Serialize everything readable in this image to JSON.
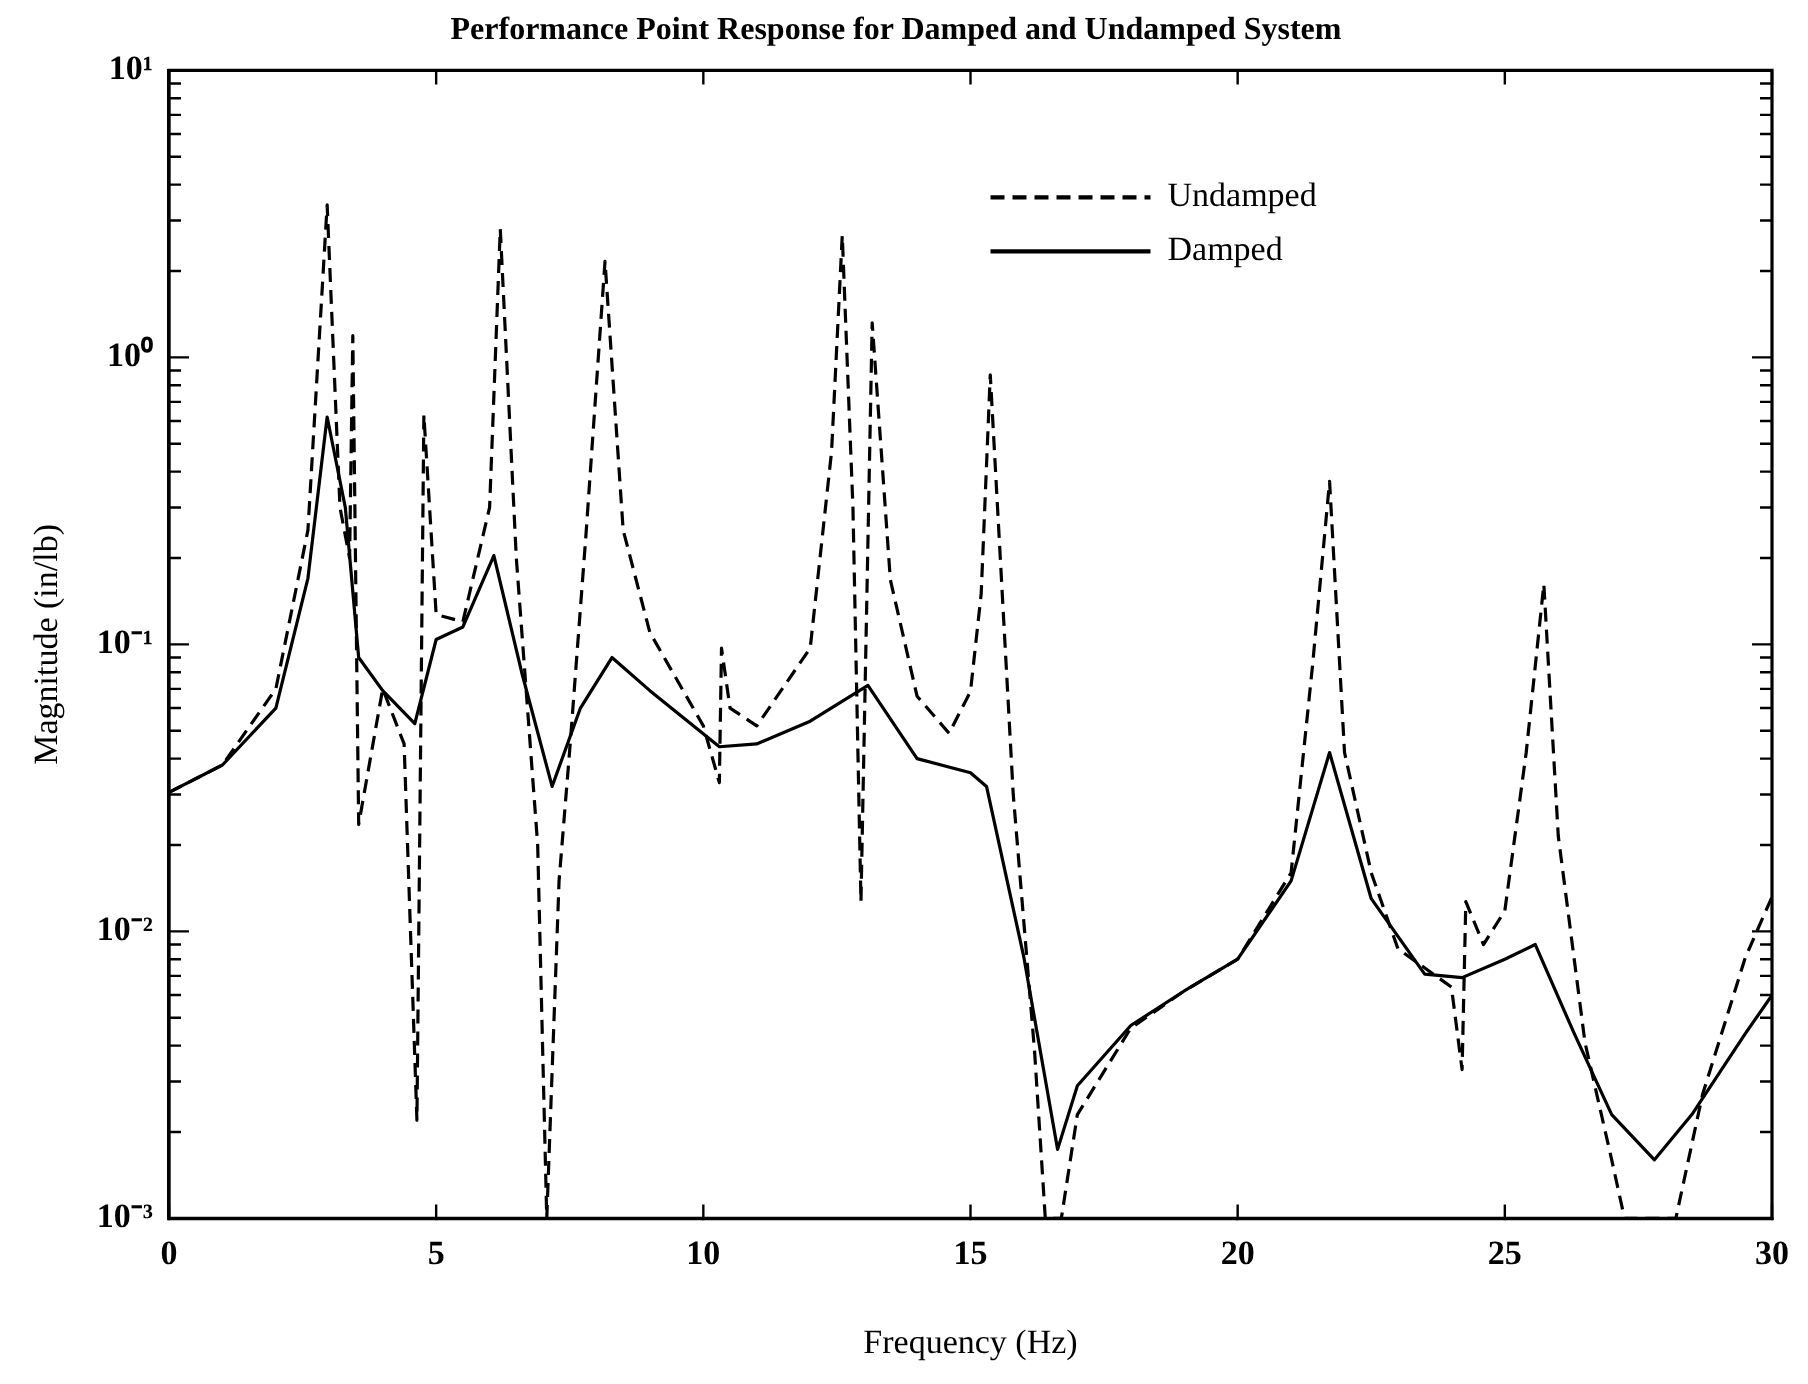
{
  "chart_data": {
    "type": "line",
    "title": "Performance Point Response for Damped and Undamped System",
    "xlabel": "Frequency (Hz)",
    "ylabel": "Magnitude (in/lb)",
    "log": "y",
    "grid": false,
    "legend": "top right",
    "marker": "none",
    "xlim": [
      0,
      30
    ],
    "xticks": [
      0,
      5,
      10,
      15,
      20,
      25,
      30
    ],
    "ylim": [
      0.001,
      10
    ],
    "yticks": [
      {
        "value": 0.001,
        "label": "10⁻³"
      },
      {
        "value": 0.002,
        "label": null
      },
      {
        "value": 0.003,
        "label": null
      },
      {
        "value": 0.004,
        "label": null
      },
      {
        "value": 0.005,
        "label": null
      },
      {
        "value": 0.006,
        "label": null
      },
      {
        "value": 0.007,
        "label": null
      },
      {
        "value": 0.008,
        "label": null
      },
      {
        "value": 0.009,
        "label": null
      },
      {
        "value": 0.01,
        "label": "10⁻²"
      },
      {
        "value": 0.02,
        "label": null
      },
      {
        "value": 0.03,
        "label": null
      },
      {
        "value": 0.04,
        "label": null
      },
      {
        "value": 0.05,
        "label": null
      },
      {
        "value": 0.06,
        "label": null
      },
      {
        "value": 0.07,
        "label": null
      },
      {
        "value": 0.08,
        "label": null
      },
      {
        "value": 0.09,
        "label": null
      },
      {
        "value": 0.1,
        "label": "10⁻¹"
      },
      {
        "value": 0.2,
        "label": null
      },
      {
        "value": 0.3,
        "label": null
      },
      {
        "value": 0.4,
        "label": null
      },
      {
        "value": 0.5,
        "label": null
      },
      {
        "value": 0.6,
        "label": null
      },
      {
        "value": 0.7,
        "label": null
      },
      {
        "value": 0.8,
        "label": null
      },
      {
        "value": 0.9,
        "label": null
      },
      {
        "value": 1,
        "label": "10⁰"
      },
      {
        "value": 2,
        "label": null
      },
      {
        "value": 3,
        "label": null
      },
      {
        "value": 4,
        "label": null
      },
      {
        "value": 5,
        "label": null
      },
      {
        "value": 6,
        "label": null
      },
      {
        "value": 7,
        "label": null
      },
      {
        "value": 8,
        "label": null
      },
      {
        "value": 9,
        "label": null
      },
      {
        "value": 10,
        "label": "10¹"
      }
    ],
    "series": [
      {
        "name": "Undamped",
        "color": "#000000",
        "line_style": "dashed",
        "x": [
          0,
          1,
          2,
          2.6,
          2.96,
          3.2,
          3.38,
          3.44,
          3.55,
          4,
          4.4,
          4.64,
          4.77,
          5,
          5.5,
          6,
          6.2,
          6.5,
          6.9,
          7.07,
          7.3,
          7.5,
          7.8,
          8.16,
          8.5,
          9,
          10,
          10.3,
          10.34,
          10.5,
          11,
          12,
          12.4,
          12.6,
          12.8,
          12.95,
          13.16,
          13.5,
          14,
          14.6,
          15,
          15.2,
          15.37,
          15.8,
          16.2,
          16.4,
          16.7,
          17,
          18,
          19,
          20,
          21,
          21.4,
          21.72,
          22,
          22.5,
          23,
          24,
          24.2,
          24.27,
          24.6,
          25,
          25.4,
          25.73,
          26,
          26.5,
          27,
          27.24,
          28.2,
          28.7,
          29.5,
          30
        ],
        "values": [
          0.0305,
          0.038,
          0.07,
          0.25,
          3.4,
          0.3,
          0.2,
          1.19,
          0.0236,
          0.07,
          0.045,
          0.0022,
          0.63,
          0.127,
          0.12,
          0.3,
          2.8,
          0.2,
          0.02,
          0.001,
          0.015,
          0.043,
          0.236,
          2.16,
          0.25,
          0.11,
          0.052,
          0.033,
          0.097,
          0.06,
          0.052,
          0.097,
          0.47,
          2.66,
          0.3,
          0.0127,
          1.32,
          0.168,
          0.066,
          0.049,
          0.0686,
          0.15,
          0.87,
          0.03,
          0.0038,
          0.001,
          0.001,
          0.0023,
          0.0046,
          0.0062,
          0.008,
          0.016,
          0.084,
          0.37,
          0.042,
          0.016,
          0.0087,
          0.0064,
          0.0033,
          0.0127,
          0.009,
          0.0118,
          0.042,
          0.162,
          0.0215,
          0.0041,
          0.0016,
          0.001,
          0.001,
          0.0027,
          0.0081,
          0.0132
        ]
      },
      {
        "name": "Damped",
        "color": "#000000",
        "line_style": "solid",
        "x": [
          0,
          1,
          2,
          2.6,
          2.96,
          3.3,
          3.55,
          4,
          4.6,
          5,
          5.5,
          6.08,
          6.6,
          7.17,
          7.7,
          8.29,
          9,
          10.3,
          11,
          12,
          13.08,
          14,
          15,
          15.3,
          16,
          16.63,
          17,
          18,
          19,
          20,
          21,
          21.72,
          22.5,
          23.5,
          24.2,
          25,
          25.57,
          26.3,
          27,
          27.8,
          28.5,
          29.5,
          30
        ],
        "values": [
          0.0305,
          0.038,
          0.06,
          0.17,
          0.62,
          0.3,
          0.09,
          0.069,
          0.053,
          0.104,
          0.115,
          0.204,
          0.08,
          0.032,
          0.06,
          0.09,
          0.069,
          0.044,
          0.045,
          0.054,
          0.072,
          0.04,
          0.0357,
          0.032,
          0.0081,
          0.00174,
          0.0029,
          0.0047,
          0.0062,
          0.008,
          0.015,
          0.042,
          0.013,
          0.0071,
          0.0069,
          0.008,
          0.009,
          0.0044,
          0.0023,
          0.0016,
          0.0023,
          0.0044,
          0.006
        ]
      }
    ]
  }
}
